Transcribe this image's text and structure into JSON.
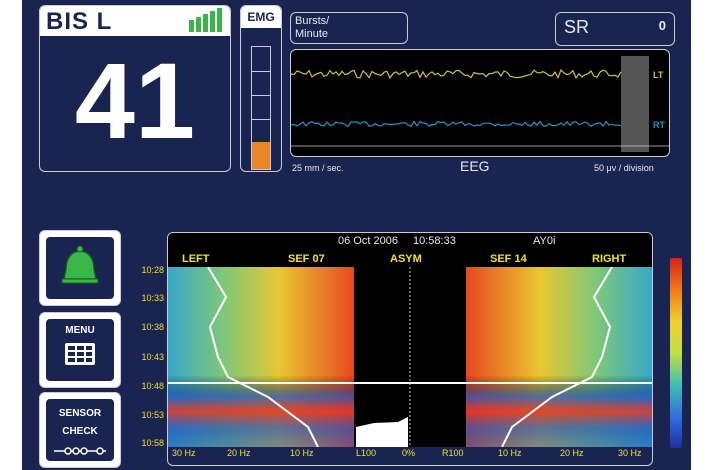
{
  "bis": {
    "label": "BIS L",
    "value": "41",
    "signal_bars": 5
  },
  "emg": {
    "label": "EMG",
    "level": 0.22
  },
  "bursts": {
    "label": "Bursts/\nMinute"
  },
  "sr": {
    "label": "SR",
    "value": "0"
  },
  "eeg": {
    "title": "EEG",
    "speed": "25 mm / sec.",
    "scale": "50 μv / division",
    "left_channel": "LT",
    "right_channel": "RT"
  },
  "dsa": {
    "date": "06 Oct 2006",
    "time": "10:58:33",
    "patient_id": "AY0i",
    "labels": {
      "left": "LEFT",
      "sef_left": "SEF 07",
      "asym": "ASYM",
      "sef_right": "SEF 14",
      "right": "RIGHT"
    },
    "time_axis": [
      "10:28",
      "10:33",
      "10:38",
      "10:43",
      "10:48",
      "10:53",
      "10:58"
    ],
    "freq_left": [
      "30 Hz",
      "20 Hz",
      "10 Hz"
    ],
    "asym_axis": [
      "L100",
      "0%",
      "R100"
    ],
    "freq_right": [
      "10 Hz",
      "20 Hz",
      "30 Hz"
    ]
  },
  "buttons": {
    "menu": "MENU",
    "sensor_check": "SENSOR\nCHECK"
  },
  "colors": {
    "background": "#1a2450",
    "lt_trace": "#c8c050",
    "rt_trace": "#2f8fc0",
    "label_yellow": "#f0e030",
    "emg_fill": "#e8862a",
    "alarm_green": "#3ab54a"
  }
}
